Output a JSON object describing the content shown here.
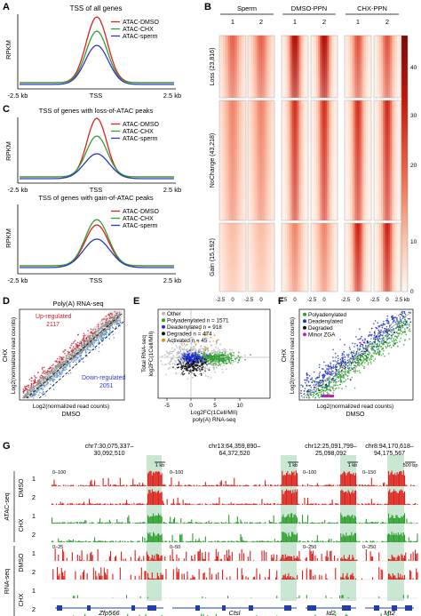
{
  "colors": {
    "dmso": "#e0201c",
    "chx": "#2ea02e",
    "sperm": "#2a37c8",
    "heat_high": "#cc1a0a",
    "heat_low": "#fff4ea",
    "highlight": "#b7dfc3",
    "up": "#cc2030",
    "down": "#4a8fe0",
    "gene": "#1f3fb0"
  },
  "panels": {
    "A": {
      "letter": "A",
      "title": "TSS of all genes",
      "ylabel": "RPKM",
      "xtick_left": "-2.5 kb",
      "xtick_mid": "TSS",
      "xtick_right": "2.5 kb",
      "legend": [
        "ATAC-DMSO",
        "ATAC-CHX",
        "ATAC-sperm"
      ]
    },
    "C": {
      "letter": "C",
      "top": {
        "title": "TSS of genes with loss-of-ATAC peaks",
        "ylabel": "RPKM",
        "xtick_left": "-2.5 kb",
        "xtick_mid": "TSS",
        "xtick_right": "2.5 kb",
        "legend": [
          "ATAC-DMSO",
          "ATAC-CHX",
          "ATAC-sperm"
        ]
      },
      "bottom": {
        "title": "TSS of genes with gain-of-ATAC peaks",
        "ylabel": "RPKM",
        "xtick_left": "-2.5 kb",
        "xtick_mid": "TSS",
        "xtick_right": "2.5 kb",
        "legend": [
          "ATAC-DMSO",
          "ATAC-CHX",
          "ATAC-sperm"
        ]
      }
    },
    "B": {
      "letter": "B",
      "groups": [
        "Sperm",
        "DMSO-PPN",
        "CHX-PPN"
      ],
      "replicates": [
        "1",
        "2"
      ],
      "rows": [
        "Loss (23,816)",
        "NoChange (43,218)",
        "Gain (15,192)"
      ],
      "xtick_left": "-2.5",
      "xtick_mid": "0",
      "xtick_right": "2.5 kb",
      "colorbar_ticks": [
        "40",
        "30",
        "20",
        "10",
        "0"
      ]
    },
    "D": {
      "letter": "D",
      "title": "Poly(A) RNA-seq",
      "ylabel_a": "CHX",
      "ylabel_b": "Log2(normalized read counts)",
      "xlabel_a": "Log2(normalized read counts)",
      "xlabel_b": "DMSO",
      "up_label": "Up-regulated",
      "up_count": "2117",
      "down_label": "Down-regulated",
      "down_count": "2051"
    },
    "E": {
      "letter": "E",
      "ylabel_a": "Total RNA-seq",
      "ylabel_b": "log2FC(1Cell/MII)",
      "xlabel_a": "Log2FC(1Cell/MII)",
      "xlabel_b": "poly(A) RNA-seq",
      "xticks": [
        "-5",
        "0",
        "5",
        "10"
      ],
      "legend": [
        {
          "label": "Other",
          "color": "#bbbbbb"
        },
        {
          "label": "Polyadenylated n = 1571",
          "color": "#2ea02e"
        },
        {
          "label": "Deadenylated n = 918",
          "color": "#1f2fd8"
        },
        {
          "label": "Degraded n = 474",
          "color": "#111111"
        },
        {
          "label": "Activated n = 45",
          "color": "#e08a10"
        }
      ]
    },
    "F": {
      "letter": "F",
      "ylabel_a": "CHX",
      "ylabel_b": "Log2(normalized read counts)",
      "xlabel_a": "Log2(normalized read counts)",
      "xlabel_b": "DMSO",
      "legend": [
        {
          "label": "Polyadenylated",
          "color": "#2ea02e"
        },
        {
          "label": "Deadenylated",
          "color": "#1f2fd8"
        },
        {
          "label": "Degraded",
          "color": "#111111"
        },
        {
          "label": "Minor ZGA",
          "color": "#c020c0"
        }
      ]
    },
    "G": {
      "letter": "G",
      "track_groups": [
        "ATAC-seq",
        "RNA-seq"
      ],
      "conditions": [
        "DMSO",
        "CHX",
        "DMSO",
        "CHX"
      ],
      "replicates": [
        "1",
        "2",
        "1",
        "2",
        "1",
        "2",
        "1",
        "2"
      ],
      "loci": [
        {
          "coord1": "chr7:30,075,337–",
          "coord2": "30,092,510",
          "scale": "1 kb",
          "atac_range": "0–100",
          "rna_range": "0–25",
          "gene": "Zfp566"
        },
        {
          "coord1": "chr13:64,359,890–",
          "coord2": "64,372,520",
          "scale": "1 kb",
          "atac_range": "0–100",
          "rna_range": "0–50",
          "gene": "Ctsl"
        },
        {
          "coord1": "chr12:25,091,799–",
          "coord2": "25,098,092",
          "scale": "1 kb",
          "atac_range": "0–100",
          "rna_range": "0–250",
          "gene": "Id2"
        },
        {
          "coord1": "chr8:94,170,618–",
          "coord2": "94,175,567",
          "scale": "500 bp",
          "atac_range": "0–150",
          "rna_range": "0–250",
          "gene": "Mt2"
        }
      ]
    }
  }
}
